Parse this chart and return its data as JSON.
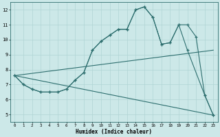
{
  "xlabel": "Humidex (Indice chaleur)",
  "ylabel": "",
  "bg_color": "#cce8e8",
  "line_color": "#2d6e6e",
  "grid_color": "#b0d4d4",
  "xlim": [
    -0.5,
    23.5
  ],
  "ylim": [
    4.5,
    12.5
  ],
  "xticks": [
    0,
    1,
    2,
    3,
    4,
    5,
    6,
    7,
    8,
    9,
    10,
    11,
    12,
    13,
    14,
    15,
    16,
    17,
    18,
    19,
    20,
    21,
    22,
    23
  ],
  "yticks": [
    5,
    6,
    7,
    8,
    9,
    10,
    11,
    12
  ],
  "lines": [
    {
      "x": [
        0,
        1,
        2,
        3,
        4,
        5,
        6,
        7,
        8,
        9,
        10,
        11,
        12,
        13,
        14,
        15,
        16,
        17,
        18,
        19,
        20,
        21,
        22,
        23
      ],
      "y": [
        7.6,
        7.0,
        6.7,
        6.5,
        6.5,
        6.5,
        6.7,
        7.3,
        7.8,
        9.3,
        9.9,
        10.3,
        10.7,
        10.7,
        12.0,
        12.2,
        11.5,
        9.7,
        9.8,
        11.0,
        11.0,
        10.2,
        6.3,
        4.95
      ],
      "marker": true
    },
    {
      "x": [
        0,
        1,
        2,
        3,
        4,
        5,
        6,
        7,
        8,
        9,
        10,
        11,
        12,
        13,
        14,
        15,
        16,
        17,
        18,
        19,
        20,
        22,
        23
      ],
      "y": [
        7.6,
        7.0,
        6.7,
        6.5,
        6.5,
        6.5,
        6.7,
        7.3,
        7.8,
        9.3,
        9.9,
        10.3,
        10.7,
        10.7,
        12.0,
        12.2,
        11.5,
        9.7,
        9.8,
        11.0,
        9.3,
        6.3,
        4.95
      ],
      "marker": true
    },
    {
      "x": [
        0,
        23
      ],
      "y": [
        7.6,
        9.3
      ],
      "marker": false
    },
    {
      "x": [
        0,
        23
      ],
      "y": [
        7.6,
        4.95
      ],
      "marker": false
    }
  ]
}
